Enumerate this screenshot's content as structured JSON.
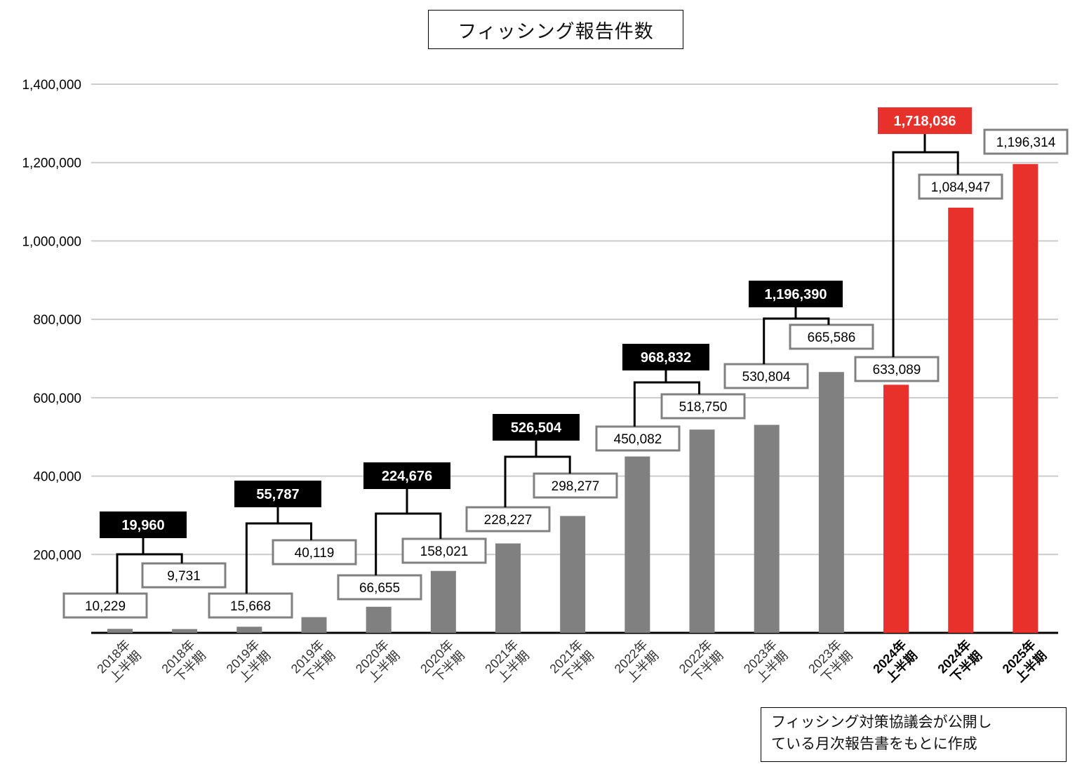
{
  "title": "フィッシング報告件数",
  "note": {
    "line1": "フィッシング対策協議会が公開し",
    "line2": "ている月次報告書をもとに作成"
  },
  "colors": {
    "gray": "#808080",
    "red": "#e8312a",
    "black": "#000000",
    "grid": "#cccccc"
  },
  "chart_data": {
    "type": "bar",
    "ylim": [
      0,
      1400000
    ],
    "grid": true,
    "yticks": [
      "200,000",
      "400,000",
      "600,000",
      "800,000",
      "1,000,000",
      "1,200,000",
      "1,400,000"
    ],
    "categories": [
      [
        "2018年",
        "上半期"
      ],
      [
        "2018年",
        "下半期"
      ],
      [
        "2019年",
        "上半期"
      ],
      [
        "2019年",
        "下半期"
      ],
      [
        "2020年",
        "上半期"
      ],
      [
        "2020年",
        "下半期"
      ],
      [
        "2021年",
        "上半期"
      ],
      [
        "2021年",
        "下半期"
      ],
      [
        "2022年",
        "上半期"
      ],
      [
        "2022年",
        "下半期"
      ],
      [
        "2023年",
        "上半期"
      ],
      [
        "2023年",
        "下半期"
      ],
      [
        "2024年",
        "上半期"
      ],
      [
        "2024年",
        "下半期"
      ],
      [
        "2025年",
        "上半期"
      ]
    ],
    "values": [
      10229,
      9731,
      15668,
      40119,
      66655,
      158021,
      228227,
      298277,
      450082,
      518750,
      530804,
      665586,
      633089,
      1084947,
      1196314
    ],
    "value_labels": [
      "10,229",
      "9,731",
      "15,668",
      "40,119",
      "66,655",
      "158,021",
      "228,227",
      "298,277",
      "450,082",
      "518,750",
      "530,804",
      "665,586",
      "633,089",
      "1,084,947",
      "1,196,314"
    ],
    "highlight": [
      false,
      false,
      false,
      false,
      false,
      false,
      false,
      false,
      false,
      false,
      false,
      false,
      true,
      true,
      true
    ],
    "annual_totals": [
      {
        "label": "19,960",
        "first": 0,
        "value": 19960,
        "highlight": false
      },
      {
        "label": "55,787",
        "first": 2,
        "value": 55787,
        "highlight": false
      },
      {
        "label": "224,676",
        "first": 4,
        "value": 224676,
        "highlight": false
      },
      {
        "label": "526,504",
        "first": 6,
        "value": 526504,
        "highlight": false
      },
      {
        "label": "968,832",
        "first": 8,
        "value": 968832,
        "highlight": false
      },
      {
        "label": "1,196,390",
        "first": 10,
        "value": 1196390,
        "highlight": false
      },
      {
        "label": "1,718,036",
        "first": 12,
        "value": 1718036,
        "highlight": true
      }
    ]
  }
}
